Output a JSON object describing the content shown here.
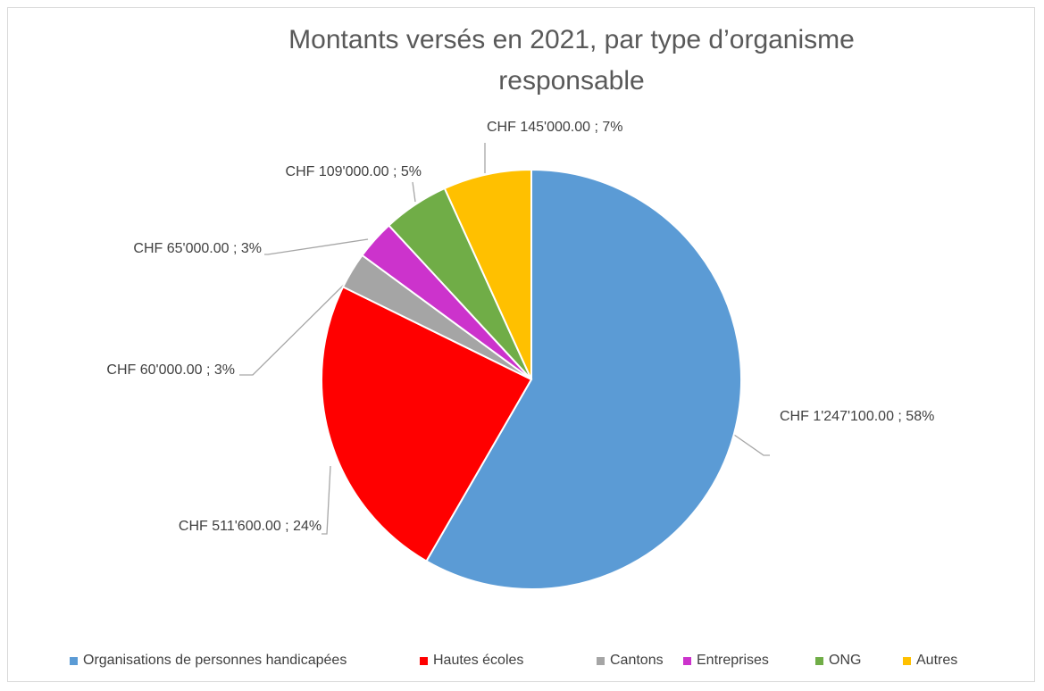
{
  "chart_data": {
    "type": "pie",
    "title": "Montants versés en 2021, par type d’organisme responsable",
    "categories": [
      "Organisations de personnes handicapées",
      "Hautes écoles",
      "Cantons",
      "Entreprises",
      "ONG",
      "Autres"
    ],
    "values": [
      1247100,
      511600,
      60000,
      65000,
      109000,
      145000
    ],
    "value_labels": [
      "CHF 1'247'100.00 ; 58%",
      "CHF 511'600.00 ; 24%",
      "CHF 60'000.00 ; 3%",
      "CHF 65'000.00 ; 3%",
      "CHF 109'000.00 ; 5%",
      "CHF 145'000.00 ; 7%"
    ],
    "colors": [
      "#5b9bd5",
      "#ff0000",
      "#a5a5a5",
      "#cc33cc",
      "#70ad47",
      "#ffc000"
    ],
    "legend": "bottom"
  }
}
